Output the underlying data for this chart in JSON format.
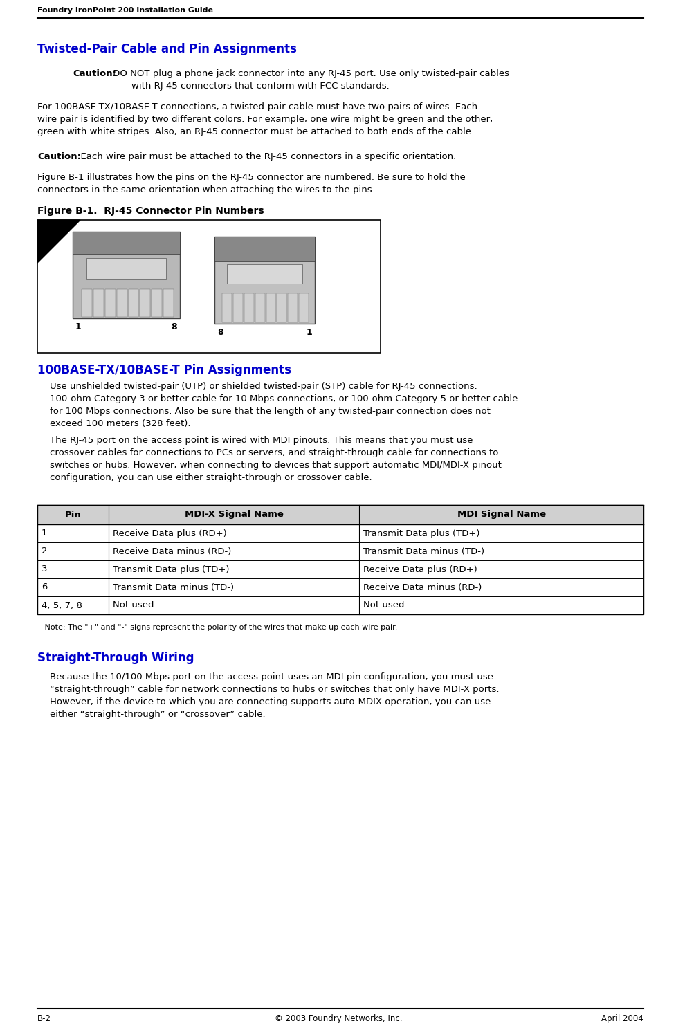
{
  "page_title": "Foundry IronPoint 200 Installation Guide",
  "footer_left": "B-2",
  "footer_center": "© 2003 Foundry Networks, Inc.",
  "footer_right": "April 2004",
  "section_title": "Twisted-Pair Cable and Pin Assignments",
  "section_title_color": "#0000CC",
  "caution1_bold": "Caution:",
  "caution1_line1": " DO NOT plug a phone jack connector into any RJ-45 port. Use only twisted-pair cables",
  "caution1_line2": "with RJ-45 connectors that conform with FCC standards.",
  "para1_lines": [
    "For 100BASE-TX/10BASE-T connections, a twisted-pair cable must have two pairs of wires. Each",
    "wire pair is identified by two different colors. For example, one wire might be green and the other,",
    "green with white stripes. Also, an RJ-45 connector must be attached to both ends of the cable."
  ],
  "caution2_bold": "Caution:",
  "caution2_text": "  Each wire pair must be attached to the RJ-45 connectors in a specific orientation.",
  "para2_lines": [
    "Figure B-1 illustrates how the pins on the RJ-45 connector are numbered. Be sure to hold the",
    "connectors in the same orientation when attaching the wires to the pins."
  ],
  "figure_caption": "Figure B-1.  RJ-45 Connector Pin Numbers",
  "section2_title": "100BASE-TX/10BASE-T Pin Assignments",
  "section2_title_color": "#0000CC",
  "para3_lines": [
    "Use unshielded twisted-pair (UTP) or shielded twisted-pair (STP) cable for RJ-45 connections:",
    "100-ohm Category 3 or better cable for 10 Mbps connections, or 100-ohm Category 5 or better cable",
    "for 100 Mbps connections. Also be sure that the length of any twisted-pair connection does not",
    "exceed 100 meters (328 feet)."
  ],
  "para4_lines": [
    "The RJ-45 port on the access point is wired with MDI pinouts. This means that you must use",
    "crossover cables for connections to PCs or servers, and straight-through cable for connections to",
    "switches or hubs. However, when connecting to devices that support automatic MDI/MDI-X pinout",
    "configuration, you can use either straight-through or crossover cable."
  ],
  "table_headers": [
    "Pin",
    "MDI-X Signal Name",
    "MDI Signal Name"
  ],
  "table_rows": [
    [
      "1",
      "Receive Data plus (RD+)",
      "Transmit Data plus (TD+)"
    ],
    [
      "2",
      "Receive Data minus (RD-)",
      "Transmit Data minus (TD-)"
    ],
    [
      "3",
      "Transmit Data plus (TD+)",
      "Receive Data plus (RD+)"
    ],
    [
      "6",
      "Transmit Data minus (TD-)",
      "Receive Data minus (RD-)"
    ],
    [
      "4, 5, 7, 8",
      "Not used",
      "Not used"
    ]
  ],
  "table_note": "   Note: The \"+\" and \"-\" signs represent the polarity of the wires that make up each wire pair.",
  "section3_title": "Straight-Through Wiring",
  "section3_title_color": "#0000CC",
  "para5_lines": [
    "Because the 10/100 Mbps port on the access point uses an MDI pin configuration, you must use",
    "“straight-through” cable for network connections to hubs or switches that only have MDI-X ports.",
    "However, if the device to which you are connecting supports auto-MDIX operation, you can use",
    "either “straight-through” or “crossover” cable."
  ],
  "background_color": "#ffffff",
  "text_color": "#000000"
}
